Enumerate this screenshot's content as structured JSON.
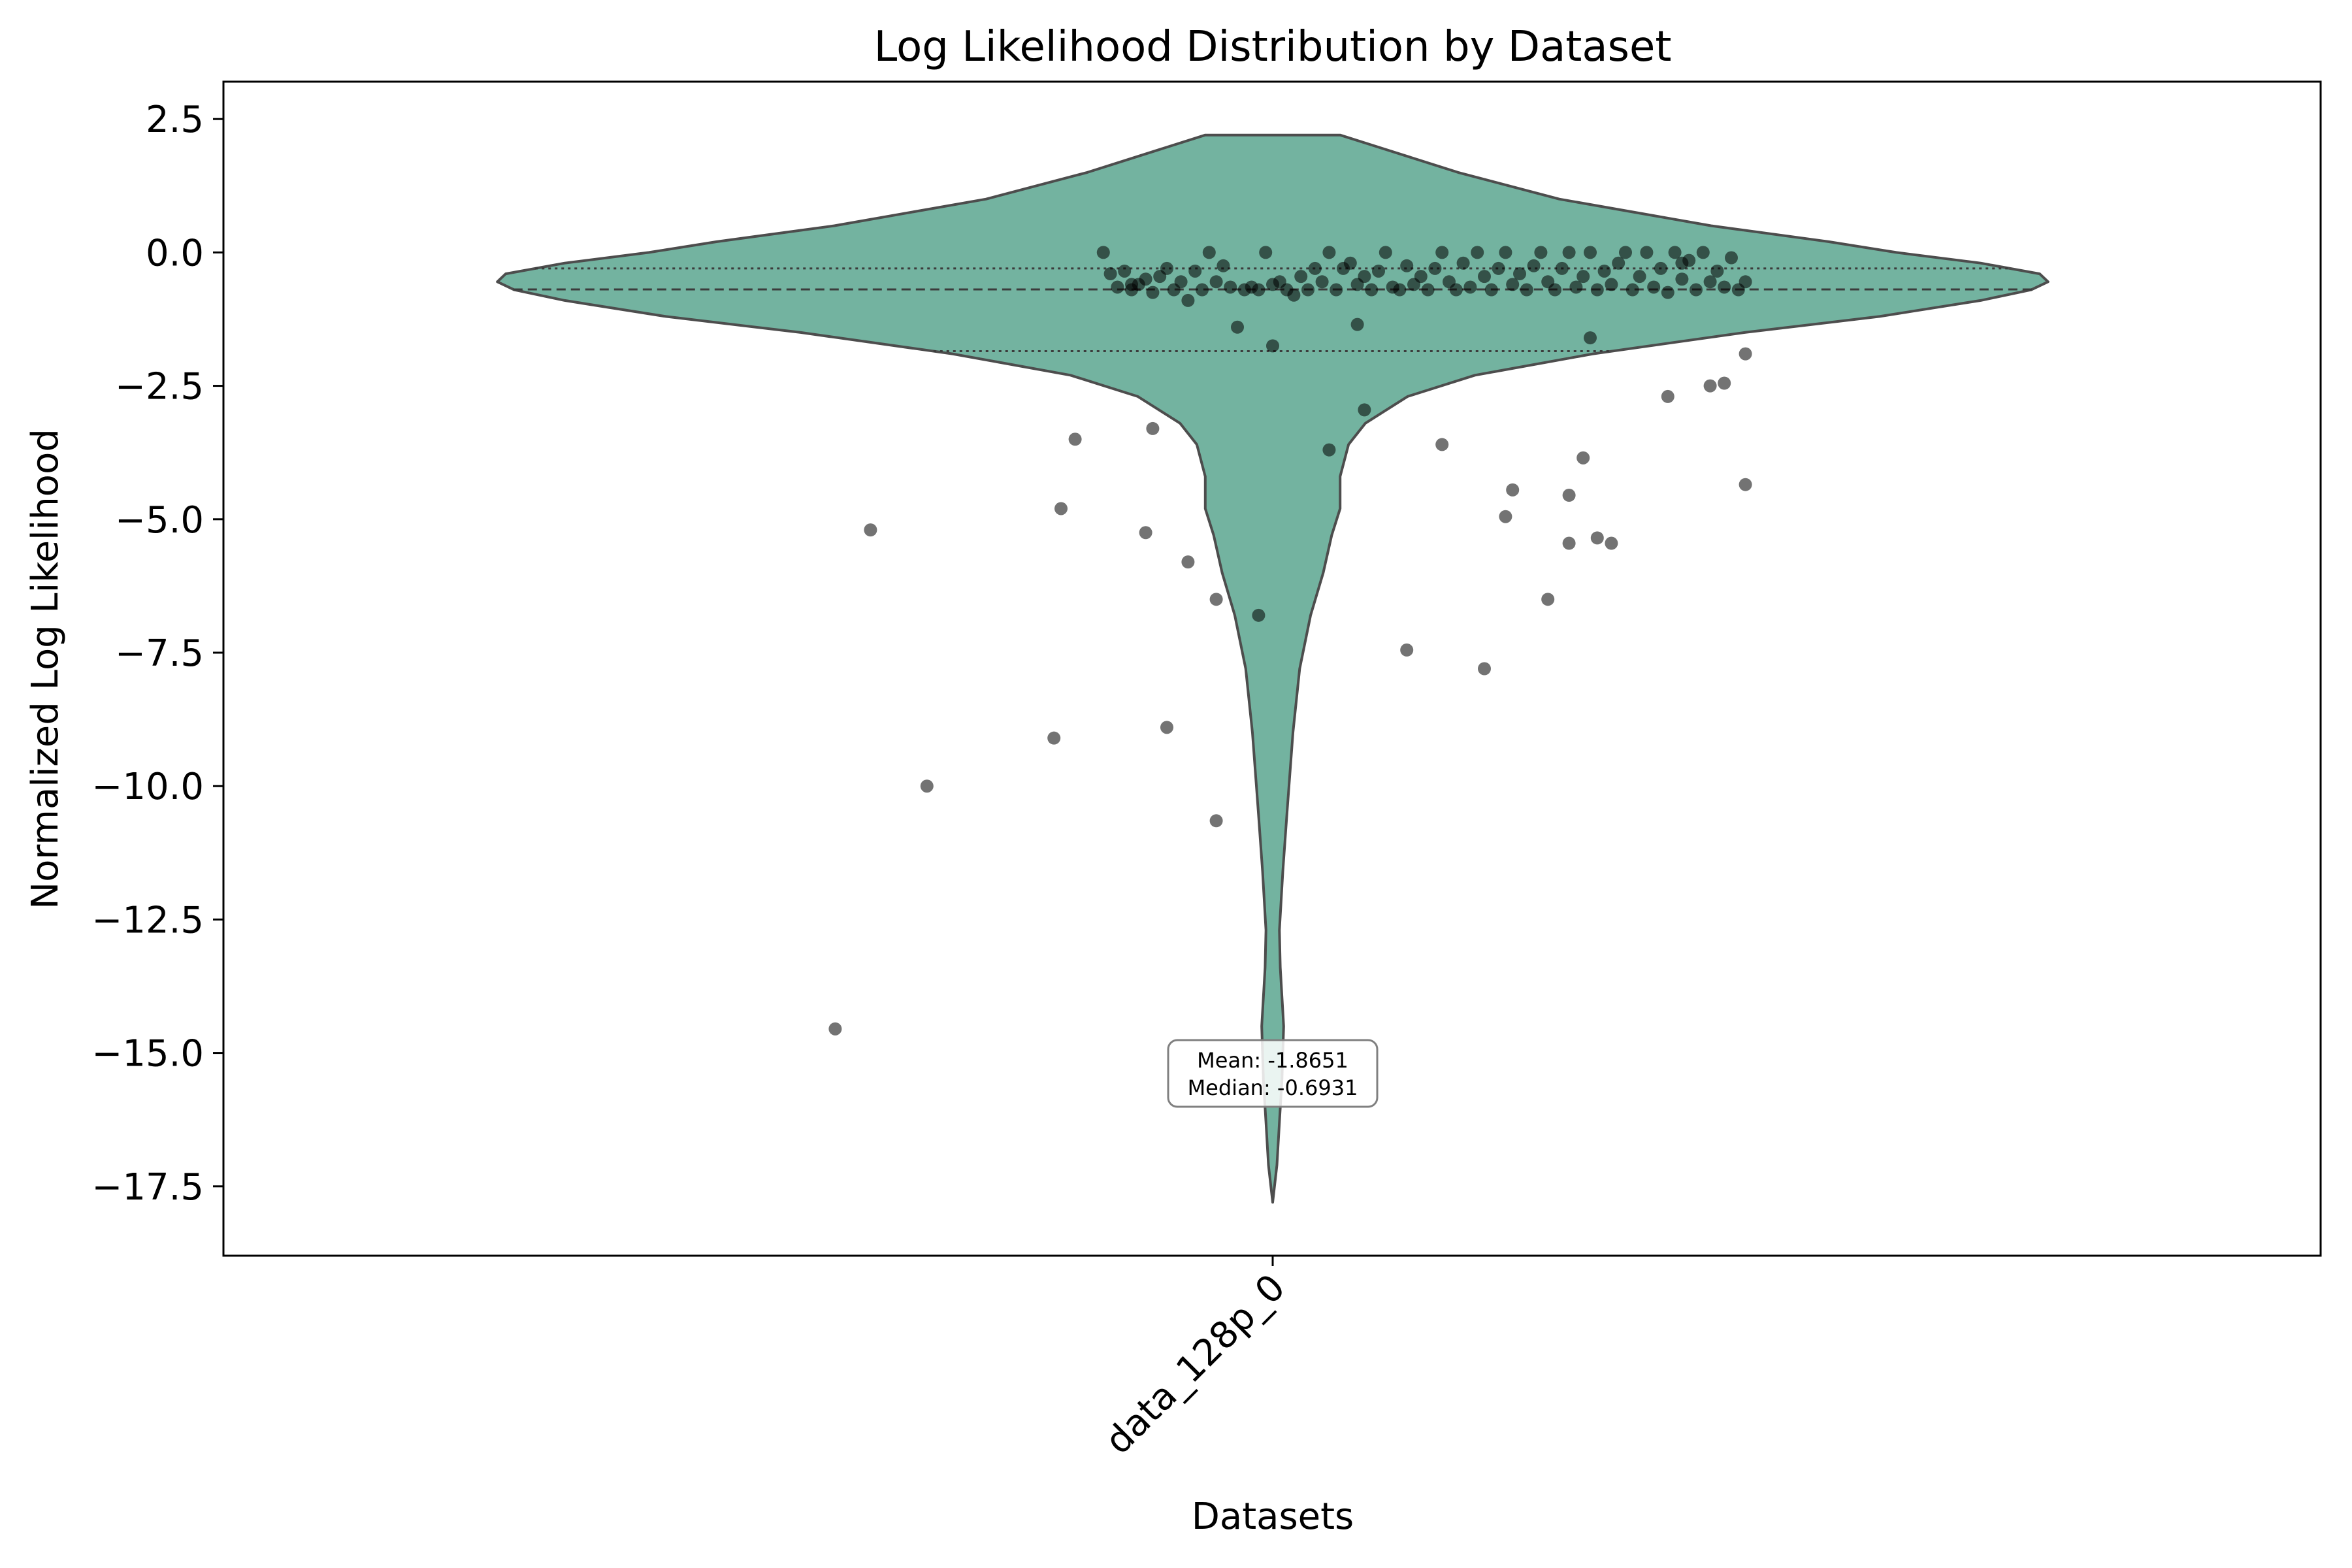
{
  "chart_data": {
    "type": "violin",
    "title": "Log Likelihood Distribution by Dataset",
    "xlabel": "Datasets",
    "ylabel": "Normalized Log Likelihood",
    "categories": [
      "data_128p_0"
    ],
    "ylim": [
      -18.8,
      3.2
    ],
    "yticks": [
      2.5,
      0.0,
      -2.5,
      -5.0,
      -7.5,
      -10.0,
      -12.5,
      -15.0,
      -17.5
    ],
    "ytick_labels": [
      "2.5",
      "0.0",
      "−2.5",
      "−5.0",
      "−7.5",
      "−10.0",
      "−12.5",
      "−15.0",
      "−17.5"
    ],
    "grid": false,
    "violin_color": "#73b3a0",
    "violin_edge": "#4d4d4d",
    "point_color": "#000000",
    "quartiles": {
      "q1": -1.85,
      "median": -0.6931,
      "q3": -0.3
    },
    "violin_profile": [
      [
        2.2,
        0.08
      ],
      [
        2.0,
        0.12
      ],
      [
        1.5,
        0.22
      ],
      [
        1.0,
        0.34
      ],
      [
        0.5,
        0.52
      ],
      [
        0.2,
        0.66
      ],
      [
        0.0,
        0.74
      ],
      [
        -0.2,
        0.84
      ],
      [
        -0.4,
        0.91
      ],
      [
        -0.55,
        0.92
      ],
      [
        -0.7,
        0.9
      ],
      [
        -0.9,
        0.84
      ],
      [
        -1.2,
        0.72
      ],
      [
        -1.5,
        0.56
      ],
      [
        -1.9,
        0.38
      ],
      [
        -2.3,
        0.24
      ],
      [
        -2.7,
        0.16
      ],
      [
        -3.2,
        0.11
      ],
      [
        -3.6,
        0.09
      ],
      [
        -4.2,
        0.08
      ],
      [
        -4.8,
        0.08
      ],
      [
        -5.3,
        0.07
      ],
      [
        -6.0,
        0.06
      ],
      [
        -6.8,
        0.045
      ],
      [
        -7.8,
        0.032
      ],
      [
        -9.0,
        0.024
      ],
      [
        -10.5,
        0.017
      ],
      [
        -11.6,
        0.012
      ],
      [
        -12.7,
        0.008
      ],
      [
        -13.4,
        0.009
      ],
      [
        -14.5,
        0.013
      ],
      [
        -15.5,
        0.011
      ],
      [
        -16.3,
        0.008
      ],
      [
        -17.1,
        0.005
      ],
      [
        -17.8,
        0.0
      ]
    ],
    "points": [
      [
        -0.24,
        0.0
      ],
      [
        -0.23,
        -0.4
      ],
      [
        -0.22,
        -0.65
      ],
      [
        -0.21,
        -0.35
      ],
      [
        -0.2,
        -0.7
      ],
      [
        -0.19,
        -0.6
      ],
      [
        -0.18,
        -0.5
      ],
      [
        -0.17,
        -0.75
      ],
      [
        -0.16,
        -0.45
      ],
      [
        -0.15,
        -0.3
      ],
      [
        -0.14,
        -0.7
      ],
      [
        -0.13,
        -0.55
      ],
      [
        -0.12,
        -0.9
      ],
      [
        -0.11,
        -0.35
      ],
      [
        -0.1,
        -0.7
      ],
      [
        -0.09,
        0.0
      ],
      [
        -0.08,
        -0.55
      ],
      [
        -0.07,
        -0.25
      ],
      [
        -0.06,
        -0.65
      ],
      [
        -0.05,
        -1.4
      ],
      [
        -0.04,
        -0.7
      ],
      [
        -0.03,
        -0.65
      ],
      [
        -0.02,
        -0.7
      ],
      [
        -0.01,
        0.0
      ],
      [
        0.0,
        -0.6
      ],
      [
        0.01,
        -0.55
      ],
      [
        0.02,
        -0.7
      ],
      [
        0.03,
        -0.8
      ],
      [
        0.04,
        -0.45
      ],
      [
        0.05,
        -0.7
      ],
      [
        0.06,
        -0.3
      ],
      [
        0.07,
        -0.55
      ],
      [
        0.08,
        0.0
      ],
      [
        0.09,
        -0.7
      ],
      [
        0.1,
        -0.3
      ],
      [
        0.11,
        -0.2
      ],
      [
        0.12,
        -0.6
      ],
      [
        0.13,
        -0.45
      ],
      [
        0.14,
        -0.7
      ],
      [
        0.15,
        -0.35
      ],
      [
        0.16,
        0.0
      ],
      [
        0.17,
        -0.65
      ],
      [
        0.18,
        -0.7
      ],
      [
        0.19,
        -0.25
      ],
      [
        0.2,
        -0.6
      ],
      [
        0.21,
        -0.45
      ],
      [
        0.22,
        -0.7
      ],
      [
        0.23,
        -0.3
      ],
      [
        0.24,
        0.0
      ],
      [
        0.25,
        -0.55
      ],
      [
        0.26,
        -0.7
      ],
      [
        0.27,
        -0.2
      ],
      [
        0.28,
        -0.65
      ],
      [
        0.29,
        0.0
      ],
      [
        0.3,
        -0.45
      ],
      [
        0.31,
        -0.7
      ],
      [
        0.32,
        -0.3
      ],
      [
        0.33,
        0.0
      ],
      [
        0.34,
        -0.6
      ],
      [
        0.35,
        -0.4
      ],
      [
        0.36,
        -0.7
      ],
      [
        0.37,
        -0.25
      ],
      [
        0.38,
        0.0
      ],
      [
        0.39,
        -0.55
      ],
      [
        0.4,
        -0.7
      ],
      [
        0.41,
        -0.3
      ],
      [
        0.42,
        0.0
      ],
      [
        0.43,
        -0.65
      ],
      [
        0.44,
        -0.45
      ],
      [
        0.45,
        0.0
      ],
      [
        0.46,
        -0.7
      ],
      [
        0.47,
        -0.35
      ],
      [
        0.48,
        -0.6
      ],
      [
        0.49,
        -0.2
      ],
      [
        0.5,
        0.0
      ],
      [
        0.51,
        -0.7
      ],
      [
        0.52,
        -0.45
      ],
      [
        0.53,
        0.0
      ],
      [
        0.54,
        -0.65
      ],
      [
        0.55,
        -0.3
      ],
      [
        0.56,
        -0.75
      ],
      [
        0.57,
        0.0
      ],
      [
        0.58,
        -0.5
      ],
      [
        0.59,
        -0.15
      ],
      [
        0.6,
        -0.7
      ],
      [
        0.61,
        0.0
      ],
      [
        0.62,
        -0.55
      ],
      [
        0.63,
        -0.35
      ],
      [
        0.64,
        -0.65
      ],
      [
        0.65,
        -0.1
      ],
      [
        0.66,
        -0.7
      ],
      [
        0.67,
        -0.55
      ],
      [
        -0.2,
        -0.6
      ],
      [
        0.58,
        -0.2
      ],
      [
        0.12,
        -1.35
      ],
      [
        0.45,
        -1.6
      ],
      [
        0.67,
        -1.9
      ],
      [
        0.0,
        -1.75
      ],
      [
        0.56,
        -2.7
      ],
      [
        0.62,
        -2.5
      ],
      [
        0.64,
        -2.45
      ],
      [
        0.13,
        -2.95
      ],
      [
        -0.28,
        -3.5
      ],
      [
        -0.17,
        -3.3
      ],
      [
        0.24,
        -3.6
      ],
      [
        0.08,
        -3.7
      ],
      [
        0.44,
        -3.85
      ],
      [
        0.67,
        -4.35
      ],
      [
        0.34,
        -4.45
      ],
      [
        0.42,
        -4.55
      ],
      [
        -0.3,
        -4.8
      ],
      [
        0.33,
        -4.95
      ],
      [
        -0.57,
        -5.2
      ],
      [
        -0.18,
        -5.25
      ],
      [
        0.46,
        -5.35
      ],
      [
        0.42,
        -5.45
      ],
      [
        0.48,
        -5.45
      ],
      [
        -0.12,
        -5.8
      ],
      [
        -0.08,
        -6.5
      ],
      [
        0.39,
        -6.5
      ],
      [
        -0.02,
        -6.8
      ],
      [
        0.19,
        -7.45
      ],
      [
        0.3,
        -7.8
      ],
      [
        -0.15,
        -8.9
      ],
      [
        -0.31,
        -9.1
      ],
      [
        -0.49,
        -10.0
      ],
      [
        -0.08,
        -10.65
      ],
      [
        -0.62,
        -14.55
      ]
    ],
    "annotation": {
      "mean_label": "Mean: -1.8651",
      "median_label": "Median: -0.6931"
    }
  }
}
